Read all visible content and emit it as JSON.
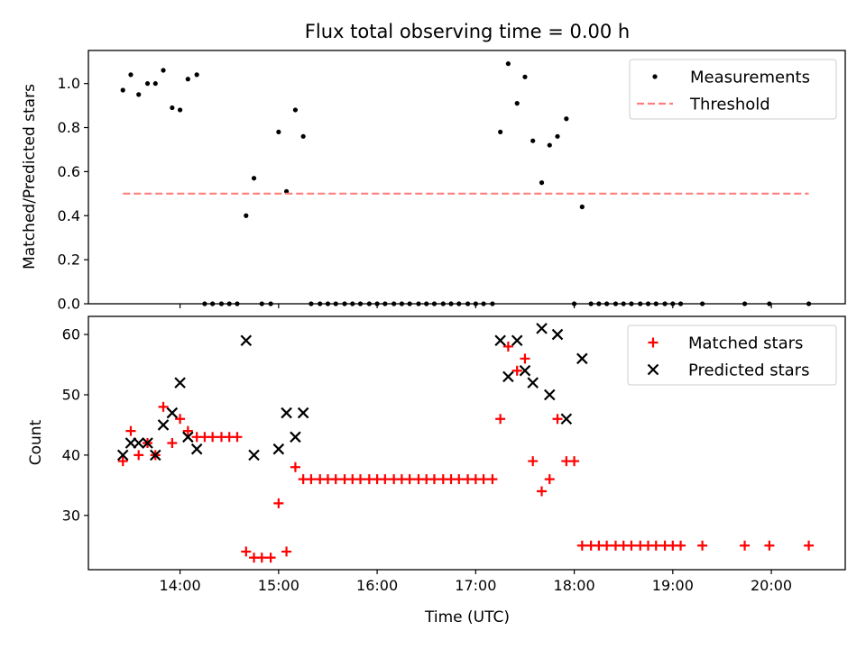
{
  "figure": {
    "title": "Flux total observing time = 0.00 h"
  },
  "chart_data": [
    {
      "type": "scatter",
      "ylabel": "Matched/Predicted stars",
      "xlim": [
        13.07,
        20.75
      ],
      "ylim": [
        0.0,
        1.15
      ],
      "yticks": [
        0.0,
        0.2,
        0.4,
        0.6,
        0.8,
        1.0
      ],
      "ytick_labels": [
        "0.0",
        "0.2",
        "0.4",
        "0.6",
        "0.8",
        "1.0"
      ],
      "legend_position": "top-right",
      "grid": false,
      "series": [
        {
          "name": "Measurements",
          "marker": "dot",
          "color": "#000000",
          "x": [
            13.42,
            13.5,
            13.58,
            13.67,
            13.75,
            13.83,
            13.92,
            14.0,
            14.08,
            14.17,
            14.25,
            14.33,
            14.42,
            14.5,
            14.58,
            14.67,
            14.75,
            14.83,
            14.92,
            15.0,
            15.08,
            15.17,
            15.25,
            15.33,
            15.42,
            15.5,
            15.58,
            15.67,
            15.75,
            15.83,
            15.92,
            16.0,
            16.08,
            16.17,
            16.25,
            16.33,
            16.42,
            16.5,
            16.58,
            16.67,
            16.75,
            16.83,
            16.92,
            17.0,
            17.08,
            17.17,
            17.25,
            17.33,
            17.42,
            17.5,
            17.58,
            17.67,
            17.75,
            17.83,
            17.92,
            18.0,
            18.08,
            18.17,
            18.25,
            18.33,
            18.42,
            18.5,
            18.58,
            18.67,
            18.75,
            18.83,
            18.92,
            19.0,
            19.08,
            19.3,
            19.73,
            19.98,
            20.38
          ],
          "y": [
            0.97,
            1.04,
            0.95,
            1.0,
            1.0,
            1.06,
            0.89,
            0.88,
            1.02,
            1.04,
            0.0,
            0.0,
            0.0,
            0.0,
            0.0,
            0.4,
            0.57,
            0.0,
            0.0,
            0.78,
            0.51,
            0.88,
            0.76,
            0.0,
            0.0,
            0.0,
            0.0,
            0.0,
            0.0,
            0.0,
            0.0,
            0.0,
            0.0,
            0.0,
            0.0,
            0.0,
            0.0,
            0.0,
            0.0,
            0.0,
            0.0,
            0.0,
            0.0,
            0.0,
            0.0,
            0.0,
            0.78,
            1.09,
            0.91,
            1.03,
            0.74,
            0.55,
            0.72,
            0.76,
            0.84,
            0.0,
            0.44,
            0.0,
            0.0,
            0.0,
            0.0,
            0.0,
            0.0,
            0.0,
            0.0,
            0.0,
            0.0,
            0.0,
            0.0,
            0.0,
            0.0,
            0.0,
            0.0
          ]
        },
        {
          "name": "Threshold",
          "marker": "dashed-line",
          "color": "#ff7f7f",
          "x": [
            13.42,
            20.38
          ],
          "y": [
            0.5,
            0.5
          ]
        }
      ]
    },
    {
      "type": "scatter",
      "xlabel": "Time (UTC)",
      "ylabel": "Count",
      "xlim": [
        13.07,
        20.75
      ],
      "ylim": [
        21,
        63
      ],
      "yticks": [
        30,
        40,
        50,
        60
      ],
      "ytick_labels": [
        "30",
        "40",
        "50",
        "60"
      ],
      "xticks": [
        14,
        15,
        16,
        17,
        18,
        19,
        20
      ],
      "xtick_labels": [
        "14:00",
        "15:00",
        "16:00",
        "17:00",
        "18:00",
        "19:00",
        "20:00"
      ],
      "legend_position": "top-right",
      "grid": false,
      "series": [
        {
          "name": "Matched stars",
          "marker": "plus",
          "color": "#ff0000",
          "x": [
            13.42,
            13.5,
            13.58,
            13.67,
            13.75,
            13.83,
            13.92,
            14.0,
            14.08,
            14.17,
            14.25,
            14.33,
            14.42,
            14.5,
            14.58,
            14.67,
            14.75,
            14.83,
            14.92,
            15.0,
            15.08,
            15.17,
            15.25,
            15.33,
            15.42,
            15.5,
            15.58,
            15.67,
            15.75,
            15.83,
            15.92,
            16.0,
            16.08,
            16.17,
            16.25,
            16.33,
            16.42,
            16.5,
            16.58,
            16.67,
            16.75,
            16.83,
            16.92,
            17.0,
            17.08,
            17.17,
            17.25,
            17.33,
            17.42,
            17.5,
            17.58,
            17.67,
            17.75,
            17.83,
            17.92,
            18.0,
            18.08,
            18.17,
            18.25,
            18.33,
            18.42,
            18.5,
            18.58,
            18.67,
            18.75,
            18.83,
            18.92,
            19.0,
            19.08,
            19.3,
            19.73,
            19.98,
            20.38
          ],
          "y": [
            39,
            44,
            40,
            42,
            40,
            48,
            42,
            46,
            44,
            43,
            43,
            43,
            43,
            43,
            43,
            24,
            23,
            23,
            23,
            32,
            24,
            38,
            36,
            36,
            36,
            36,
            36,
            36,
            36,
            36,
            36,
            36,
            36,
            36,
            36,
            36,
            36,
            36,
            36,
            36,
            36,
            36,
            36,
            36,
            36,
            36,
            46,
            58,
            54,
            56,
            39,
            34,
            36,
            46,
            39,
            39,
            25,
            25,
            25,
            25,
            25,
            25,
            25,
            25,
            25,
            25,
            25,
            25,
            25,
            25,
            25,
            25,
            25
          ]
        },
        {
          "name": "Predicted stars",
          "marker": "x",
          "color": "#000000",
          "x": [
            13.42,
            13.5,
            13.58,
            13.67,
            13.75,
            13.83,
            13.92,
            14.0,
            14.08,
            14.17,
            14.67,
            14.75,
            15.0,
            15.08,
            15.17,
            15.25,
            17.25,
            17.33,
            17.42,
            17.5,
            17.58,
            17.67,
            17.75,
            17.83,
            17.92,
            18.08
          ],
          "y": [
            40,
            42,
            42,
            42,
            40,
            45,
            47,
            52,
            43,
            41,
            59,
            40,
            41,
            47,
            43,
            47,
            59,
            53,
            59,
            54,
            52,
            61,
            50,
            60,
            46,
            56
          ]
        }
      ]
    }
  ]
}
